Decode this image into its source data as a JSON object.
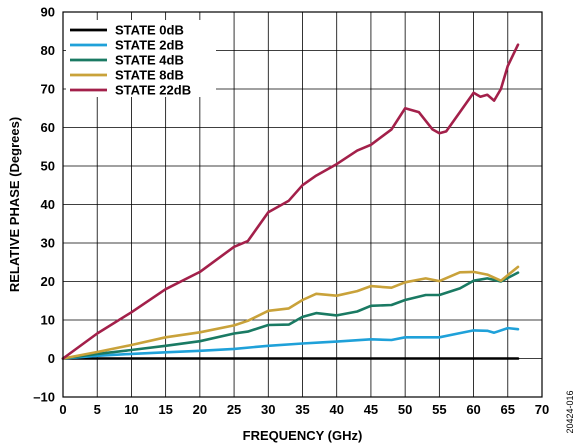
{
  "chart_data": {
    "type": "line",
    "title": "",
    "xlabel": "FREQUENCY (GHz)",
    "ylabel": "RELATIVE PHASE (Degrees)",
    "xlim": [
      0,
      70
    ],
    "ylim": [
      -10,
      90
    ],
    "xticks": [
      0,
      5,
      10,
      15,
      20,
      25,
      30,
      35,
      40,
      45,
      50,
      55,
      60,
      65,
      70
    ],
    "yticks": [
      -10,
      0,
      10,
      20,
      30,
      40,
      50,
      60,
      70,
      80,
      90
    ],
    "grid": true,
    "legend_position": "top-left",
    "series": [
      {
        "name": "STATE 0dB",
        "color": "#000000",
        "x": [
          0,
          66.5
        ],
        "y": [
          0,
          0
        ]
      },
      {
        "name": "STATE 2dB",
        "color": "#1fa1d9",
        "x": [
          0,
          5,
          10,
          15,
          20,
          25,
          30,
          35,
          38,
          40,
          45,
          48,
          50,
          55,
          58,
          60,
          62,
          63,
          65,
          66.5
        ],
        "y": [
          0,
          0.7,
          1.2,
          1.6,
          2.0,
          2.5,
          3.3,
          3.9,
          4.2,
          4.4,
          5.0,
          4.8,
          5.5,
          5.5,
          6.6,
          7.3,
          7.2,
          6.7,
          7.9,
          7.6
        ]
      },
      {
        "name": "STATE 4dB",
        "color": "#1a7a63",
        "x": [
          0,
          5,
          10,
          15,
          20,
          25,
          27,
          30,
          33,
          35,
          37,
          40,
          43,
          45,
          48,
          50,
          53,
          55,
          58,
          60,
          62,
          64,
          66.5
        ],
        "y": [
          0,
          1.2,
          2.2,
          3.3,
          4.5,
          6.5,
          7.0,
          8.7,
          8.8,
          10.8,
          11.8,
          11.2,
          12.2,
          13.7,
          13.9,
          15.2,
          16.5,
          16.5,
          18.2,
          20.2,
          20.8,
          20.0,
          22.3
        ]
      },
      {
        "name": "STATE 8dB",
        "color": "#c9a23a",
        "x": [
          0,
          5,
          10,
          15,
          20,
          25,
          27,
          30,
          33,
          35,
          37,
          40,
          43,
          45,
          48,
          50,
          53,
          55,
          58,
          60,
          62,
          64,
          66.5
        ],
        "y": [
          0,
          1.7,
          3.5,
          5.5,
          6.8,
          8.6,
          9.8,
          12.4,
          13.0,
          15.2,
          16.8,
          16.3,
          17.5,
          18.8,
          18.4,
          19.8,
          20.8,
          20.1,
          22.4,
          22.5,
          21.8,
          20.2,
          23.8
        ]
      },
      {
        "name": "STATE 22dB",
        "color": "#a3204a",
        "x": [
          0,
          5,
          10,
          15,
          20,
          25,
          27,
          30,
          33,
          35,
          37,
          40,
          43,
          45,
          48,
          50,
          52,
          54,
          55,
          56,
          58,
          59,
          60,
          61,
          62,
          63,
          64,
          65,
          66.5
        ],
        "y": [
          0,
          6.5,
          12.0,
          18.0,
          22.5,
          29.0,
          30.5,
          38.0,
          41.0,
          45.0,
          47.5,
          50.5,
          54.0,
          55.5,
          59.5,
          65.0,
          64.0,
          59.5,
          58.5,
          59.0,
          64.0,
          66.5,
          69.0,
          68.0,
          68.5,
          67.0,
          70.0,
          76.0,
          81.5
        ]
      }
    ]
  },
  "side_note": "20424-016"
}
